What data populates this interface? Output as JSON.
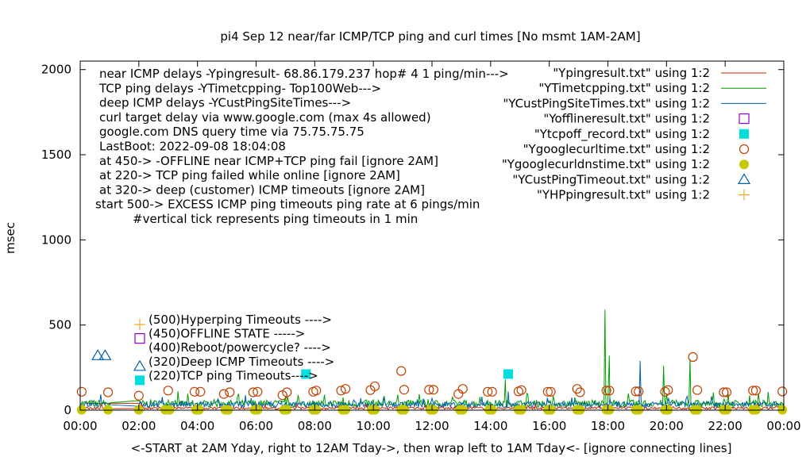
{
  "chart_data": {
    "type": "line",
    "title": "pi4 Sep 12  near/far ICMP/TCP ping and curl times [No msmt 1AM-2AM]",
    "xlabel": "<-START at 2AM Yday, right to 12AM Tday->, then wrap left to 1AM Tday<- [ignore connecting lines]",
    "ylabel": "msec",
    "xlim": [
      0,
      24
    ],
    "ylim": [
      0,
      2050
    ],
    "grid": false,
    "legend_position": "top-right",
    "x_ticks": [
      {
        "v": 0,
        "label": "00:00"
      },
      {
        "v": 2,
        "label": "02:00"
      },
      {
        "v": 4,
        "label": "04:00"
      },
      {
        "v": 6,
        "label": "06:00"
      },
      {
        "v": 8,
        "label": "08:00"
      },
      {
        "v": 10,
        "label": "10:00"
      },
      {
        "v": 12,
        "label": "12:00"
      },
      {
        "v": 14,
        "label": "14:00"
      },
      {
        "v": 16,
        "label": "16:00"
      },
      {
        "v": 18,
        "label": "18:00"
      },
      {
        "v": 20,
        "label": "20:00"
      },
      {
        "v": 22,
        "label": "22:00"
      },
      {
        "v": 24,
        "label": "00:00"
      }
    ],
    "y_ticks": [
      {
        "v": 0,
        "label": "0"
      },
      {
        "v": 500,
        "label": "500"
      },
      {
        "v": 1000,
        "label": "1000"
      },
      {
        "v": 1500,
        "label": "1500"
      },
      {
        "v": 2000,
        "label": "2000"
      }
    ],
    "info_lines": [
      "near ICMP delays -Ypingresult- 68.86.179.237 hop# 4 1 ping/min--->",
      "TCP ping delays -YTimetcpping- Top100Web--->",
      "deep ICMP delays -YCustPingSiteTimes--->",
      "curl target delay via www.google.com (max 4s allowed)",
      "google.com DNS query time via 75.75.75.75",
      "LastBoot: 2022-09-08 18:04:08",
      "at 450-> -OFFLINE near ICMP+TCP ping fail [ignore 2AM]",
      "at 220-> TCP ping failed while online [ignore 2AM]",
      "at 320-> deep (customer) ICMP timeouts [ignore 2AM]",
      "start 500-> EXCESS ICMP ping timeouts ping rate at 6 pings/min",
      "#vertical tick represents ping timeouts in 1 min"
    ],
    "marker_key": [
      {
        "label": "(500)Hyperping Timeouts ---->",
        "marker": "plus",
        "color": "#e6b222"
      },
      {
        "label": "(450)OFFLINE STATE ----->",
        "marker": "square",
        "color": "#9400d3"
      },
      {
        "label": "(400)Reboot/powercycle? ---->",
        "marker": "none",
        "color": "#000000"
      },
      {
        "label": "(320)Deep ICMP Timeouts ---->",
        "marker": "triangle",
        "color": "#0060ad"
      },
      {
        "label": "(220)TCP ping Timeouts---->",
        "marker": "filled-square",
        "color": "#00dddd"
      }
    ],
    "series": [
      {
        "name": "\"Ypingresult.txt\" using 1:2",
        "style": "line",
        "color": "#cc2200"
      },
      {
        "name": "\"YTimetcpping.txt\" using 1:2",
        "style": "line",
        "color": "#009e00",
        "spikes": [
          {
            "x": 17.9,
            "y": 590
          },
          {
            "x": 18.05,
            "y": 320
          },
          {
            "x": 20.8,
            "y": 300
          },
          {
            "x": 19.9,
            "y": 260
          },
          {
            "x": 14.5,
            "y": 180
          }
        ]
      },
      {
        "name": "\"YCustPingSiteTimes.txt\" using 1:2",
        "style": "line",
        "color": "#0060ad",
        "spikes": [
          {
            "x": 19.1,
            "y": 290
          },
          {
            "x": 14.6,
            "y": 110
          }
        ]
      },
      {
        "name": "\"Yofflineresult.txt\" using 1:2",
        "style": "open-square",
        "color": "#9400d3",
        "points": []
      },
      {
        "name": "\"Ytcpoff_record.txt\" using 1:2",
        "style": "filled-square",
        "color": "#00dddd",
        "points": [
          {
            "x": 7.7,
            "y": 212
          },
          {
            "x": 14.6,
            "y": 212
          }
        ]
      },
      {
        "name": "\"Ygooglecurltime.txt\" using 1:2",
        "style": "open-circle",
        "color": "#c04000",
        "points": [
          {
            "x": 0.05,
            "y": 108
          },
          {
            "x": 0.95,
            "y": 105
          },
          {
            "x": 2.0,
            "y": 85
          },
          {
            "x": 3.0,
            "y": 115
          },
          {
            "x": 3.9,
            "y": 108
          },
          {
            "x": 4.1,
            "y": 108
          },
          {
            "x": 4.9,
            "y": 95
          },
          {
            "x": 5.1,
            "y": 105
          },
          {
            "x": 5.9,
            "y": 105
          },
          {
            "x": 6.05,
            "y": 108
          },
          {
            "x": 6.9,
            "y": 88
          },
          {
            "x": 7.05,
            "y": 105
          },
          {
            "x": 7.95,
            "y": 108
          },
          {
            "x": 8.05,
            "y": 115
          },
          {
            "x": 8.9,
            "y": 115
          },
          {
            "x": 9.05,
            "y": 125
          },
          {
            "x": 9.9,
            "y": 118
          },
          {
            "x": 10.05,
            "y": 140
          },
          {
            "x": 10.95,
            "y": 230
          },
          {
            "x": 11.05,
            "y": 120
          },
          {
            "x": 11.9,
            "y": 120
          },
          {
            "x": 12.05,
            "y": 120
          },
          {
            "x": 12.9,
            "y": 95
          },
          {
            "x": 13.05,
            "y": 125
          },
          {
            "x": 13.9,
            "y": 108
          },
          {
            "x": 14.05,
            "y": 108
          },
          {
            "x": 14.95,
            "y": 110
          },
          {
            "x": 15.05,
            "y": 118
          },
          {
            "x": 15.95,
            "y": 108
          },
          {
            "x": 16.05,
            "y": 108
          },
          {
            "x": 16.95,
            "y": 125
          },
          {
            "x": 17.05,
            "y": 105
          },
          {
            "x": 17.95,
            "y": 115
          },
          {
            "x": 18.05,
            "y": 115
          },
          {
            "x": 18.95,
            "y": 110
          },
          {
            "x": 19.05,
            "y": 110
          },
          {
            "x": 19.95,
            "y": 108
          },
          {
            "x": 20.05,
            "y": 118
          },
          {
            "x": 20.9,
            "y": 312
          },
          {
            "x": 21.05,
            "y": 118
          },
          {
            "x": 21.95,
            "y": 105
          },
          {
            "x": 22.05,
            "y": 105
          },
          {
            "x": 22.95,
            "y": 115
          },
          {
            "x": 23.05,
            "y": 115
          },
          {
            "x": 23.95,
            "y": 110
          }
        ]
      },
      {
        "name": "\"Ygooglecurldnstime.txt\" using 1:2",
        "style": "filled-circle",
        "color": "#c8c800",
        "points": [
          {
            "x": 0.05,
            "y": 2
          },
          {
            "x": 0.95,
            "y": 2
          },
          {
            "x": 2.0,
            "y": 2
          },
          {
            "x": 2.9,
            "y": 2
          },
          {
            "x": 3.05,
            "y": 2
          },
          {
            "x": 3.95,
            "y": 2
          },
          {
            "x": 4.05,
            "y": 2
          },
          {
            "x": 4.95,
            "y": 2
          },
          {
            "x": 5.05,
            "y": 2
          },
          {
            "x": 5.95,
            "y": 2
          },
          {
            "x": 6.05,
            "y": 2
          },
          {
            "x": 6.95,
            "y": 2
          },
          {
            "x": 7.05,
            "y": 2
          },
          {
            "x": 7.95,
            "y": 2
          },
          {
            "x": 8.05,
            "y": 2
          },
          {
            "x": 8.95,
            "y": 2
          },
          {
            "x": 9.05,
            "y": 2
          },
          {
            "x": 9.95,
            "y": 2
          },
          {
            "x": 10.05,
            "y": 2
          },
          {
            "x": 10.95,
            "y": 2
          },
          {
            "x": 11.05,
            "y": 2
          },
          {
            "x": 11.95,
            "y": 2
          },
          {
            "x": 12.05,
            "y": 2
          },
          {
            "x": 12.95,
            "y": 2
          },
          {
            "x": 13.05,
            "y": 2
          },
          {
            "x": 13.95,
            "y": 2
          },
          {
            "x": 14.05,
            "y": 2
          },
          {
            "x": 14.95,
            "y": 2
          },
          {
            "x": 15.05,
            "y": 2
          },
          {
            "x": 15.95,
            "y": 2
          },
          {
            "x": 16.05,
            "y": 2
          },
          {
            "x": 16.95,
            "y": 2
          },
          {
            "x": 17.05,
            "y": 2
          },
          {
            "x": 17.95,
            "y": 2
          },
          {
            "x": 18.05,
            "y": 2
          },
          {
            "x": 18.95,
            "y": 2
          },
          {
            "x": 19.05,
            "y": 2
          },
          {
            "x": 19.95,
            "y": 2
          },
          {
            "x": 20.05,
            "y": 2
          },
          {
            "x": 20.95,
            "y": 2
          },
          {
            "x": 21.05,
            "y": 2
          },
          {
            "x": 21.95,
            "y": 2
          },
          {
            "x": 22.05,
            "y": 2
          },
          {
            "x": 22.95,
            "y": 2
          },
          {
            "x": 23.05,
            "y": 2
          },
          {
            "x": 23.95,
            "y": 2
          }
        ]
      },
      {
        "name": "\"YCustPingTimeout.txt\" using 1:2",
        "style": "open-triangle",
        "color": "#0060ad",
        "points": [
          {
            "x": 0.6,
            "y": 320
          },
          {
            "x": 0.85,
            "y": 320
          }
        ]
      },
      {
        "name": "\"YHPpingresult.txt\" using 1:2",
        "style": "plus",
        "color": "#e6b222",
        "points": []
      }
    ]
  }
}
